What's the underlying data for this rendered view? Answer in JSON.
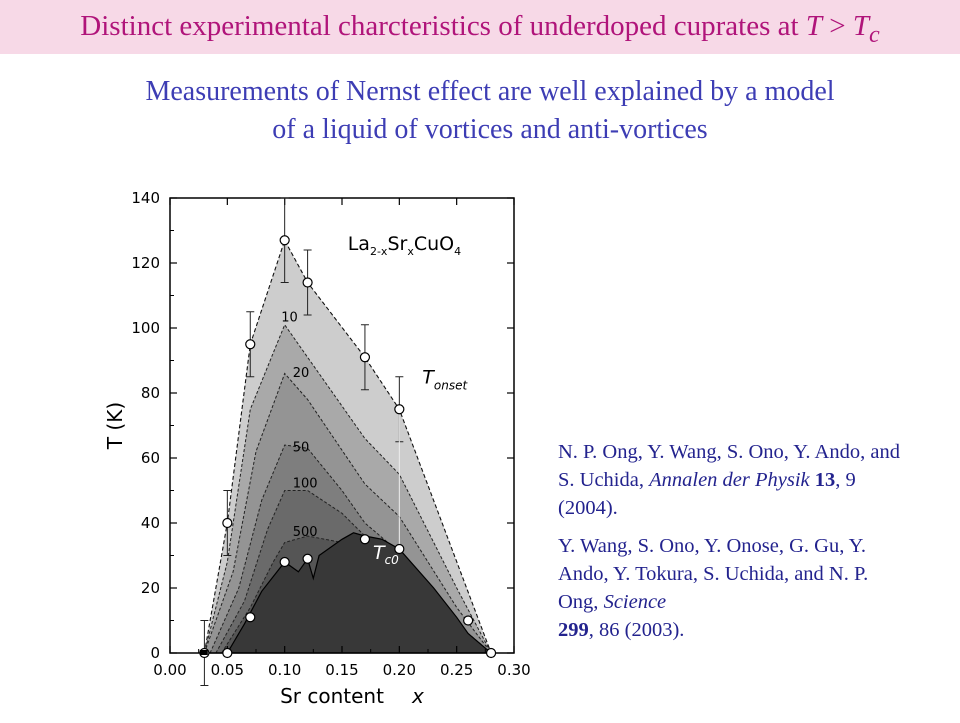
{
  "header": {
    "title_main": "Distinct experimental charcteristics of underdoped cuprates at ",
    "title_T": "T",
    "title_gt": " > ",
    "title_Tc_T": "T",
    "title_Tc_sub": "c"
  },
  "subtitle": {
    "line1": "Measurements of Nernst effect are well explained by a model",
    "line2": "of a liquid of vortices and anti-vortices"
  },
  "chart_data": {
    "type": "area",
    "xlabel": "Sr content",
    "xlabel_var": "x",
    "ylabel": "T (K)",
    "xlim": [
      0.0,
      0.3
    ],
    "ylim": [
      0,
      140
    ],
    "x_ticks": [
      "0.00",
      "0.05",
      "0.10",
      "0.15",
      "0.20",
      "0.25",
      "0.30"
    ],
    "y_ticks": [
      "0",
      "20",
      "40",
      "60",
      "80",
      "100",
      "120",
      "140"
    ],
    "formula": {
      "base1": "La",
      "sub1": "2-x",
      "base2": "Sr",
      "sub2": "x",
      "base3": "CuO",
      "sub3": "4"
    },
    "annotation_onset": {
      "main": "T",
      "sub": "onset"
    },
    "annotation_tc": {
      "main": "T",
      "sub": "c0"
    },
    "contours": [
      {
        "label": "10",
        "fill": "#a9a9a9",
        "points": [
          [
            0.03,
            0
          ],
          [
            0.05,
            28
          ],
          [
            0.07,
            75
          ],
          [
            0.1,
            101
          ],
          [
            0.12,
            91
          ],
          [
            0.17,
            66
          ],
          [
            0.2,
            55
          ],
          [
            0.25,
            20
          ],
          [
            0.28,
            0
          ]
        ]
      },
      {
        "label": "20",
        "fill": "#949494",
        "points": [
          [
            0.03,
            0
          ],
          [
            0.055,
            25
          ],
          [
            0.075,
            62
          ],
          [
            0.1,
            86
          ],
          [
            0.12,
            78
          ],
          [
            0.17,
            52
          ],
          [
            0.2,
            42
          ],
          [
            0.25,
            14
          ],
          [
            0.28,
            0
          ]
        ]
      },
      {
        "label": "50",
        "fill": "#7e7e7e",
        "points": [
          [
            0.035,
            0
          ],
          [
            0.06,
            20
          ],
          [
            0.08,
            47
          ],
          [
            0.1,
            64
          ],
          [
            0.12,
            63
          ],
          [
            0.15,
            50
          ],
          [
            0.17,
            40
          ],
          [
            0.2,
            31
          ],
          [
            0.25,
            9
          ],
          [
            0.28,
            0
          ]
        ]
      },
      {
        "label": "100",
        "fill": "#6a6a6a",
        "points": [
          [
            0.04,
            0
          ],
          [
            0.065,
            16
          ],
          [
            0.085,
            38
          ],
          [
            0.1,
            50
          ],
          [
            0.12,
            50
          ],
          [
            0.15,
            43
          ],
          [
            0.17,
            36
          ],
          [
            0.2,
            27
          ],
          [
            0.25,
            7
          ],
          [
            0.28,
            0
          ]
        ]
      },
      {
        "label": "500",
        "fill": "#555555",
        "points": [
          [
            0.045,
            0
          ],
          [
            0.07,
            14
          ],
          [
            0.09,
            28
          ],
          [
            0.1,
            34
          ],
          [
            0.12,
            36
          ],
          [
            0.15,
            34
          ],
          [
            0.17,
            32
          ],
          [
            0.2,
            25
          ],
          [
            0.25,
            6
          ],
          [
            0.28,
            0
          ]
        ]
      }
    ],
    "tc0_curve": {
      "fill": "#383838",
      "points": [
        [
          0.03,
          0
        ],
        [
          0.05,
          0
        ],
        [
          0.065,
          9
        ],
        [
          0.08,
          19
        ],
        [
          0.1,
          28
        ],
        [
          0.112,
          25
        ],
        [
          0.12,
          29
        ],
        [
          0.125,
          23
        ],
        [
          0.13,
          30
        ],
        [
          0.15,
          35
        ],
        [
          0.16,
          37
        ],
        [
          0.17,
          36
        ],
        [
          0.185,
          35
        ],
        [
          0.2,
          32
        ],
        [
          0.23,
          20
        ],
        [
          0.25,
          11
        ],
        [
          0.26,
          6
        ],
        [
          0.28,
          0
        ]
      ]
    },
    "onset_points": [
      {
        "x": 0.03,
        "y": 0,
        "err": 10
      },
      {
        "x": 0.05,
        "y": 40,
        "err": 10
      },
      {
        "x": 0.07,
        "y": 95,
        "err": 10
      },
      {
        "x": 0.1,
        "y": 127,
        "err": 13
      },
      {
        "x": 0.12,
        "y": 114,
        "err": 10
      },
      {
        "x": 0.17,
        "y": 91,
        "err": 10
      },
      {
        "x": 0.2,
        "y": 75,
        "err": 10
      }
    ],
    "tc_points": [
      {
        "x": 0.05,
        "y": 0
      },
      {
        "x": 0.07,
        "y": 11
      },
      {
        "x": 0.1,
        "y": 28
      },
      {
        "x": 0.12,
        "y": 29
      },
      {
        "x": 0.17,
        "y": 35
      },
      {
        "x": 0.2,
        "y": 32
      },
      {
        "x": 0.26,
        "y": 10
      },
      {
        "x": 0.28,
        "y": 0
      }
    ],
    "contour_labels": [
      {
        "text": "10",
        "x": 0.097,
        "y": 102
      },
      {
        "text": "20",
        "x": 0.107,
        "y": 85
      },
      {
        "text": "50",
        "x": 0.107,
        "y": 62
      },
      {
        "text": "100",
        "x": 0.107,
        "y": 51
      },
      {
        "text": "500",
        "x": 0.107,
        "y": 36
      }
    ]
  },
  "references": {
    "ref1": {
      "authors": " N. P. Ong, Y. Wang, S. Ono, Y. Ando, and S. Uchida, ",
      "journal": "Annalen der Physik",
      "volume": "13",
      "rest": ", 9 (2004)."
    },
    "ref2": {
      "authors": "Y. Wang, S. Ono, Y. Onose, G. Gu, Y. Ando, Y. Tokura, S. Uchida, and N. P. Ong, ",
      "journal": "Science",
      "volume": "299",
      "rest": ", 86 (2003)."
    }
  }
}
